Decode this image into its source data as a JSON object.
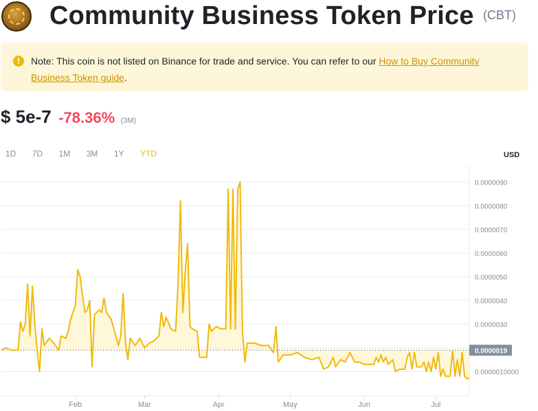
{
  "header": {
    "title": "Community Business Token Price",
    "symbol": "(CBT)"
  },
  "note": {
    "icon": "!",
    "text": "Note: This coin is not listed on Binance for trade and service. You can refer to our ",
    "link_text": "How to Buy Community Business Token guide",
    "suffix": "."
  },
  "price": {
    "value": "$ 5e-7",
    "change": "-78.36%",
    "period": "(3M)"
  },
  "ranges": [
    {
      "label": "1D",
      "active": false
    },
    {
      "label": "7D",
      "active": false
    },
    {
      "label": "1M",
      "active": false
    },
    {
      "label": "3M",
      "active": false
    },
    {
      "label": "1Y",
      "active": false
    },
    {
      "label": "YTD",
      "active": true
    }
  ],
  "currency_label": "USD",
  "colors": {
    "line": "#f0b90b",
    "area": "#fdf3c9",
    "negative": "#f6465d",
    "accent": "#f0b90b",
    "price_tag": "#848e9c"
  },
  "chart_data": {
    "type": "line",
    "ylabel": "USD",
    "ylim": [
      0.0,
      9.5e-06
    ],
    "y_ticks": [
      {
        "value": 1e-06,
        "label": "0.0000010000"
      },
      {
        "value": 2e-06,
        "label": "0.0000020"
      },
      {
        "value": 3e-06,
        "label": "0.0000030"
      },
      {
        "value": 4e-06,
        "label": "0.0000040"
      },
      {
        "value": 5e-06,
        "label": "0.0000050"
      },
      {
        "value": 6e-06,
        "label": "0.0000060"
      },
      {
        "value": 7e-06,
        "label": "0.0000070"
      },
      {
        "value": 8e-06,
        "label": "0.0000080"
      },
      {
        "value": 9e-06,
        "label": "0.0000090"
      }
    ],
    "x_ticks": [
      {
        "value": "2024-02-01",
        "label": "Feb"
      },
      {
        "value": "2024-03-01",
        "label": "Mar"
      },
      {
        "value": "2024-04-01",
        "label": "Apr"
      },
      {
        "value": "2024-05-01",
        "label": "May"
      },
      {
        "value": "2024-06-01",
        "label": "Jun"
      },
      {
        "value": "2024-07-01",
        "label": "Jul"
      }
    ],
    "xlim": [
      "2024-01-01",
      "2024-07-15"
    ],
    "reference_value": 1.9e-06,
    "reference_label": "0.0000019",
    "series": [
      {
        "points": [
          [
            "2024-01-01",
            1.9e-06
          ],
          [
            "2024-01-03",
            2e-06
          ],
          [
            "2024-01-05",
            1.9e-06
          ],
          [
            "2024-01-08",
            1.9e-06
          ],
          [
            "2024-01-09",
            3.1e-06
          ],
          [
            "2024-01-10",
            2.7e-06
          ],
          [
            "2024-01-11",
            3e-06
          ],
          [
            "2024-01-12",
            4.7e-06
          ],
          [
            "2024-01-13",
            2.5e-06
          ],
          [
            "2024-01-14",
            4.6e-06
          ],
          [
            "2024-01-15",
            3e-06
          ],
          [
            "2024-01-16",
            1.9e-06
          ],
          [
            "2024-01-17",
            1e-06
          ],
          [
            "2024-01-18",
            2.8e-06
          ],
          [
            "2024-01-19",
            2.1e-06
          ],
          [
            "2024-01-21",
            2.4e-06
          ],
          [
            "2024-01-23",
            2.2e-06
          ],
          [
            "2024-01-25",
            1.9e-06
          ],
          [
            "2024-01-26",
            2.5e-06
          ],
          [
            "2024-01-28",
            2.4e-06
          ],
          [
            "2024-01-29",
            2.7e-06
          ],
          [
            "2024-01-30",
            3.2e-06
          ],
          [
            "2024-02-01",
            3.8e-06
          ],
          [
            "2024-02-02",
            5.3e-06
          ],
          [
            "2024-02-03",
            5e-06
          ],
          [
            "2024-02-04",
            4.2e-06
          ],
          [
            "2024-02-05",
            3.5e-06
          ],
          [
            "2024-02-06",
            3.6e-06
          ],
          [
            "2024-02-07",
            4e-06
          ],
          [
            "2024-02-08",
            1.2e-06
          ],
          [
            "2024-02-09",
            3.4e-06
          ],
          [
            "2024-02-11",
            3.6e-06
          ],
          [
            "2024-02-12",
            3.5e-06
          ],
          [
            "2024-02-13",
            4.1e-06
          ],
          [
            "2024-02-14",
            3.5e-06
          ],
          [
            "2024-02-16",
            3.2e-06
          ],
          [
            "2024-02-18",
            2.5e-06
          ],
          [
            "2024-02-19",
            2.1e-06
          ],
          [
            "2024-02-20",
            2.5e-06
          ],
          [
            "2024-02-21",
            4.3e-06
          ],
          [
            "2024-02-22",
            2.2e-06
          ],
          [
            "2024-02-23",
            1.5e-06
          ],
          [
            "2024-02-24",
            2.4e-06
          ],
          [
            "2024-02-26",
            2.1e-06
          ],
          [
            "2024-02-28",
            2.4e-06
          ],
          [
            "2024-03-01",
            2e-06
          ],
          [
            "2024-03-03",
            2.2e-06
          ],
          [
            "2024-03-05",
            2.3e-06
          ],
          [
            "2024-03-07",
            2.5e-06
          ],
          [
            "2024-03-08",
            3.5e-06
          ],
          [
            "2024-03-09",
            2.9e-06
          ],
          [
            "2024-03-10",
            3.3e-06
          ],
          [
            "2024-03-12",
            2.8e-06
          ],
          [
            "2024-03-14",
            2.7e-06
          ],
          [
            "2024-03-15",
            4.7e-06
          ],
          [
            "2024-03-16",
            8.2e-06
          ],
          [
            "2024-03-17",
            3.5e-06
          ],
          [
            "2024-03-18",
            5.2e-06
          ],
          [
            "2024-03-19",
            6.4e-06
          ],
          [
            "2024-03-20",
            2.9e-06
          ],
          [
            "2024-03-21",
            2.8e-06
          ],
          [
            "2024-03-23",
            2.7e-06
          ],
          [
            "2024-03-24",
            1.6e-06
          ],
          [
            "2024-03-27",
            1.6e-06
          ],
          [
            "2024-03-28",
            3e-06
          ],
          [
            "2024-03-29",
            2.7e-06
          ],
          [
            "2024-03-31",
            2.9e-06
          ],
          [
            "2024-04-02",
            2.8e-06
          ],
          [
            "2024-04-04",
            2.8e-06
          ],
          [
            "2024-04-05",
            8.7e-06
          ],
          [
            "2024-04-06",
            2.8e-06
          ],
          [
            "2024-04-07",
            8.7e-06
          ],
          [
            "2024-04-08",
            2.8e-06
          ],
          [
            "2024-04-09",
            8.7e-06
          ],
          [
            "2024-04-10",
            9e-06
          ],
          [
            "2024-04-11",
            2.7e-06
          ],
          [
            "2024-04-12",
            1.4e-06
          ],
          [
            "2024-04-13",
            2.2e-06
          ],
          [
            "2024-04-16",
            2.2e-06
          ],
          [
            "2024-04-19",
            2.1e-06
          ],
          [
            "2024-04-22",
            2.1e-06
          ],
          [
            "2024-04-24",
            1.8e-06
          ],
          [
            "2024-04-25",
            2.9e-06
          ],
          [
            "2024-04-26",
            1.4e-06
          ],
          [
            "2024-04-28",
            1.7e-06
          ],
          [
            "2024-05-01",
            1.7e-06
          ],
          [
            "2024-05-04",
            1.8e-06
          ],
          [
            "2024-05-07",
            1.6e-06
          ],
          [
            "2024-05-10",
            1.5e-06
          ],
          [
            "2024-05-13",
            1.6e-06
          ],
          [
            "2024-05-15",
            1.1e-06
          ],
          [
            "2024-05-17",
            1.2e-06
          ],
          [
            "2024-05-19",
            1.6e-06
          ],
          [
            "2024-05-20",
            1.2e-06
          ],
          [
            "2024-05-22",
            1.5e-06
          ],
          [
            "2024-05-24",
            1.4e-06
          ],
          [
            "2024-05-26",
            1.8e-06
          ],
          [
            "2024-05-28",
            1.4e-06
          ],
          [
            "2024-05-30",
            1.4e-06
          ],
          [
            "2024-06-01",
            1.3e-06
          ],
          [
            "2024-06-03",
            1.3e-06
          ],
          [
            "2024-06-05",
            1.3e-06
          ],
          [
            "2024-06-06",
            1.6e-06
          ],
          [
            "2024-06-07",
            1.4e-06
          ],
          [
            "2024-06-08",
            1.7e-06
          ],
          [
            "2024-06-09",
            1.4e-06
          ],
          [
            "2024-06-10",
            1.6e-06
          ],
          [
            "2024-06-11",
            1.3e-06
          ],
          [
            "2024-06-13",
            1.5e-06
          ],
          [
            "2024-06-14",
            1e-06
          ],
          [
            "2024-06-16",
            1.1e-06
          ],
          [
            "2024-06-18",
            1.1e-06
          ],
          [
            "2024-06-19",
            1.6e-06
          ],
          [
            "2024-06-20",
            1.8e-06
          ],
          [
            "2024-06-21",
            1.1e-06
          ],
          [
            "2024-06-22",
            1.8e-06
          ],
          [
            "2024-06-23",
            1.2e-06
          ],
          [
            "2024-06-25",
            1.2e-06
          ],
          [
            "2024-06-26",
            1.4e-06
          ],
          [
            "2024-06-27",
            1e-06
          ],
          [
            "2024-06-28",
            1.4e-06
          ],
          [
            "2024-06-29",
            1e-06
          ],
          [
            "2024-06-30",
            1.6e-06
          ],
          [
            "2024-07-01",
            1.1e-06
          ],
          [
            "2024-07-02",
            1.8e-06
          ],
          [
            "2024-07-03",
            8e-07
          ],
          [
            "2024-07-04",
            1.1e-06
          ],
          [
            "2024-07-05",
            8e-07
          ],
          [
            "2024-07-07",
            8e-07
          ],
          [
            "2024-07-08",
            1.9e-06
          ],
          [
            "2024-07-09",
            8e-07
          ],
          [
            "2024-07-10",
            1.5e-06
          ],
          [
            "2024-07-11",
            8e-07
          ],
          [
            "2024-07-12",
            1.8e-06
          ],
          [
            "2024-07-13",
            8e-07
          ],
          [
            "2024-07-14",
            7e-07
          ],
          [
            "2024-07-15",
            7e-07
          ]
        ]
      }
    ]
  }
}
